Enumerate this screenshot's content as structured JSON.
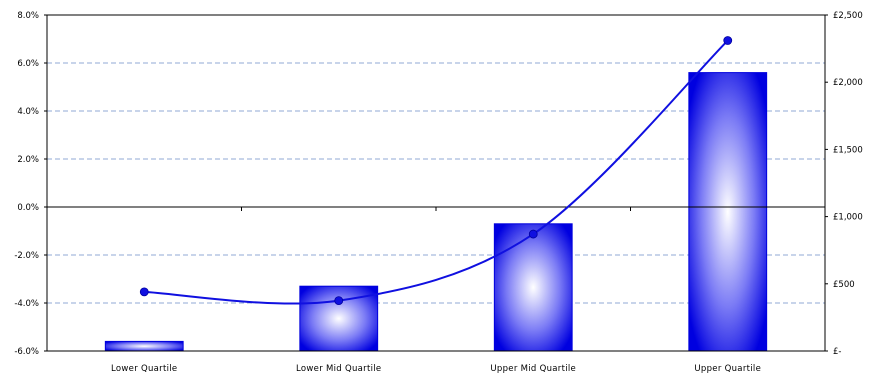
{
  "chart_data": {
    "type": "bar",
    "categories": [
      "Lower Quartile",
      "Lower Mid Quartile",
      "Upper Mid Quartile",
      "Upper Quartile"
    ],
    "series": [
      {
        "type": "bar",
        "axis": "left",
        "values": [
          -5.6,
          -3.3,
          -0.7,
          5.6
        ]
      },
      {
        "type": "line",
        "axis": "right",
        "values": [
          440,
          375,
          870,
          2310
        ]
      }
    ],
    "left_axis": {
      "min": -6,
      "max": 8,
      "step": 2,
      "tick_labels": [
        "-6.0%",
        "-4.0%",
        "-2.0%",
        "0.0%",
        "2.0%",
        "4.0%",
        "6.0%",
        "8.0%"
      ]
    },
    "right_axis": {
      "min": 0,
      "max": 2500,
      "step": 500,
      "tick_labels": [
        "£-",
        "£500",
        "£1,000",
        "£1,500",
        "£2,000",
        "£2,500"
      ]
    },
    "grid": "horizontal dashed",
    "colors": {
      "bar_edge": "#0000dd",
      "bar_center": "#ffffff",
      "line": "#1010e0",
      "grid": "#6e8fc8"
    }
  }
}
